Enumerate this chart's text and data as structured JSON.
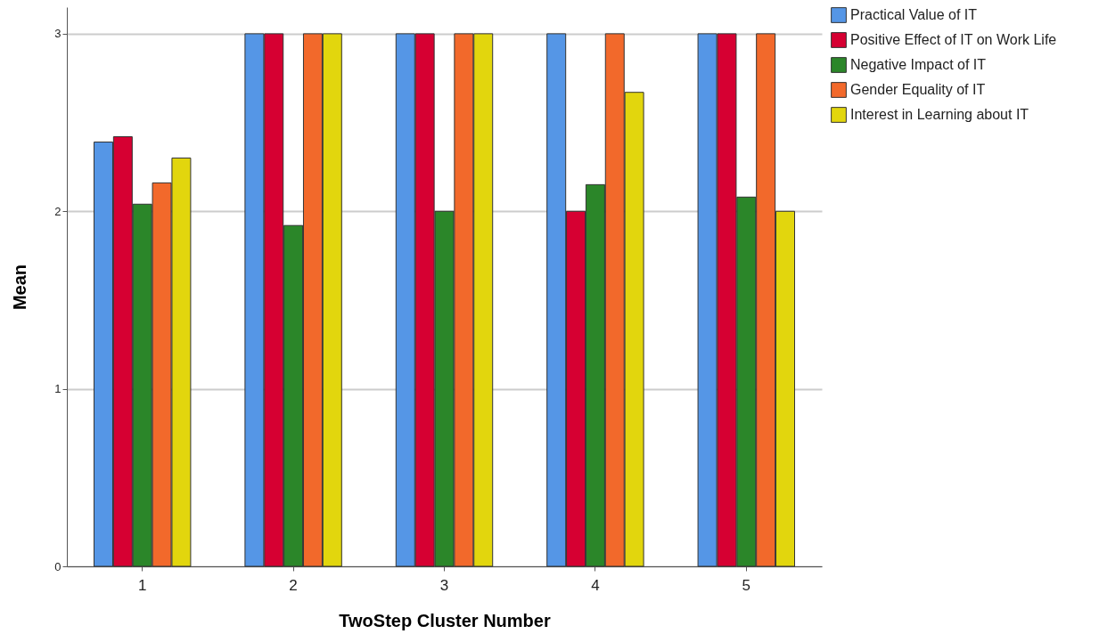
{
  "chart_data": {
    "type": "bar",
    "xlabel": "TwoStep Cluster Number",
    "ylabel": "Mean",
    "categories": [
      "1",
      "2",
      "3",
      "4",
      "5"
    ],
    "series": [
      {
        "name": "Practical Value of IT",
        "color": "#5596e6",
        "values": [
          2.39,
          3,
          3,
          3,
          3
        ]
      },
      {
        "name": "Positive Effect of IT on Work Life",
        "color": "#d60032",
        "values": [
          2.42,
          3,
          3,
          2,
          3
        ]
      },
      {
        "name": "Negative Impact of IT",
        "color": "#2b8629",
        "values": [
          2.04,
          1.92,
          2,
          2.15,
          2.08
        ]
      },
      {
        "name": "Gender Equality of IT",
        "color": "#f2692b",
        "values": [
          2.16,
          3,
          3,
          3,
          3
        ]
      },
      {
        "name": "Interest in Learning about IT",
        "color": "#e2d60d",
        "values": [
          2.3,
          3,
          3,
          2.67,
          2
        ]
      }
    ],
    "ylim": [
      0,
      3.15
    ],
    "yticks": [
      0,
      1,
      2,
      3
    ],
    "grid": "y",
    "legend": "top right"
  }
}
